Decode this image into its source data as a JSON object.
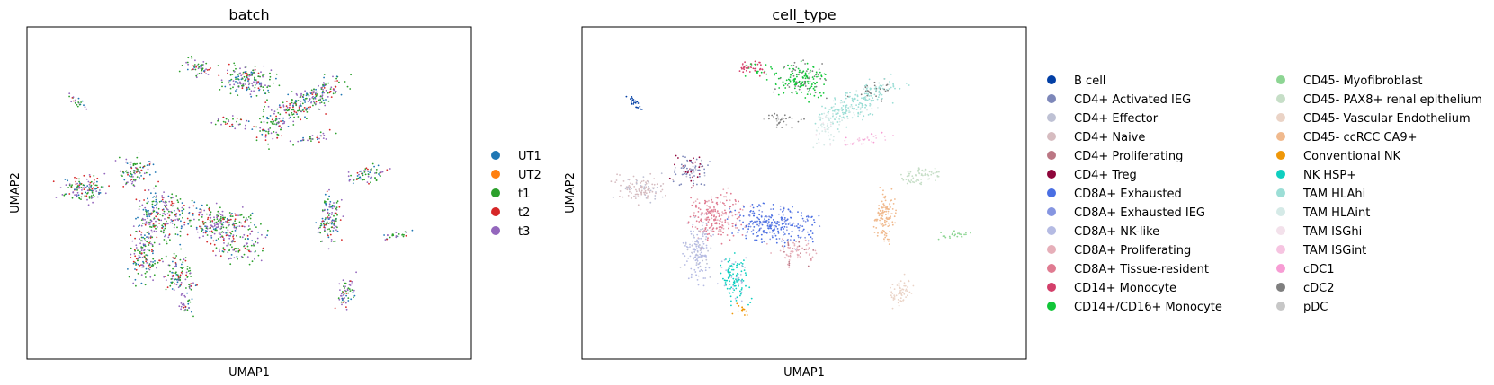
{
  "chart_data": [
    {
      "type": "scatter",
      "title": "batch",
      "xlabel": "UMAP1",
      "ylabel": "UMAP2",
      "grid": false,
      "legend_position": "right",
      "legend": [
        {
          "label": "UT1",
          "color": "#1f77b4"
        },
        {
          "label": "UT2",
          "color": "#ff7f0e"
        },
        {
          "label": "t1",
          "color": "#2ca02c"
        },
        {
          "label": "t2",
          "color": "#d62728"
        },
        {
          "label": "t3",
          "color": "#9467bd"
        }
      ]
    },
    {
      "type": "scatter",
      "title": "cell_type",
      "xlabel": "UMAP1",
      "ylabel": "UMAP2",
      "grid": false,
      "legend_position": "right",
      "legend": [
        {
          "label": "B cell",
          "color": "#023fa5"
        },
        {
          "label": "CD4+ Activated IEG",
          "color": "#7d87b9"
        },
        {
          "label": "CD4+ Effector",
          "color": "#bec1d4"
        },
        {
          "label": "CD4+ Naive",
          "color": "#d6bcc0"
        },
        {
          "label": "CD4+ Proliferating",
          "color": "#bb7784"
        },
        {
          "label": "CD4+ Treg",
          "color": "#8e063b"
        },
        {
          "label": "CD8A+ Exhausted",
          "color": "#4a6fe3"
        },
        {
          "label": "CD8A+ Exhausted IEG",
          "color": "#8595e1"
        },
        {
          "label": "CD8A+ NK-like",
          "color": "#b5bbe3"
        },
        {
          "label": "CD8A+ Proliferating",
          "color": "#e6afb9"
        },
        {
          "label": "CD8A+ Tissue-resident",
          "color": "#e07b91"
        },
        {
          "label": "CD14+ Monocyte",
          "color": "#d33f6a"
        },
        {
          "label": "CD14+/CD16+ Monocyte",
          "color": "#11c638"
        },
        {
          "label": "CD45- Myofibroblast",
          "color": "#8dd593"
        },
        {
          "label": "CD45- PAX8+ renal epithelium",
          "color": "#c6dec7"
        },
        {
          "label": "CD45- Vascular Endothelium",
          "color": "#ead3c6"
        },
        {
          "label": "CD45- ccRCC CA9+",
          "color": "#f0b98d"
        },
        {
          "label": "Conventional NK",
          "color": "#ef9708"
        },
        {
          "label": "NK HSP+",
          "color": "#0fcfc0"
        },
        {
          "label": "TAM HLAhi",
          "color": "#9cded6"
        },
        {
          "label": "TAM HLAint",
          "color": "#d5eae7"
        },
        {
          "label": "TAM ISGhi",
          "color": "#f3e1eb"
        },
        {
          "label": "TAM ISGint",
          "color": "#f6c4e1"
        },
        {
          "label": "cDC1",
          "color": "#f79cd4"
        },
        {
          "label": "cDC2",
          "color": "#7f7f7f"
        },
        {
          "label": "pDC",
          "color": "#c7c7c7"
        }
      ]
    }
  ]
}
